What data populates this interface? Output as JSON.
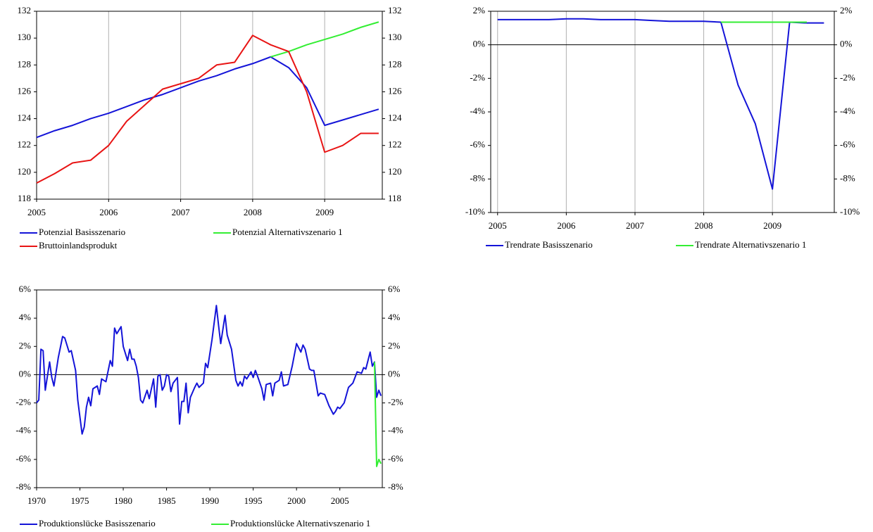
{
  "chart_data": [
    {
      "type": "line",
      "x": [
        2005,
        2005.25,
        2005.5,
        2005.75,
        2006,
        2006.25,
        2006.5,
        2006.75,
        2007,
        2007.25,
        2007.5,
        2007.75,
        2008,
        2008.25,
        2008.5,
        2008.75,
        2009,
        2009.25,
        2009.5,
        2009.75
      ],
      "xlim": [
        2005,
        2009.8
      ],
      "xticks": [
        2005,
        2006,
        2007,
        2008,
        2009
      ],
      "ylim": [
        118,
        132
      ],
      "yticks": [
        118,
        120,
        122,
        124,
        126,
        128,
        130,
        132
      ],
      "y2lim": [
        118,
        132
      ],
      "y2ticks": [
        118,
        120,
        122,
        124,
        126,
        128,
        130,
        132
      ],
      "xgrid": true,
      "zero_line": false,
      "series": [
        {
          "name": "Potenzial Basisszenario",
          "color": "#1414d8",
          "values": [
            122.6,
            123.1,
            123.5,
            124.0,
            124.4,
            124.9,
            125.4,
            125.8,
            126.3,
            126.8,
            127.2,
            127.7,
            128.1,
            128.6,
            127.8,
            126.3,
            123.5,
            123.9,
            124.3,
            124.7
          ]
        },
        {
          "name": "Potenzial Alternativszenario 1",
          "color": "#33ee33",
          "values": [
            null,
            null,
            null,
            null,
            null,
            null,
            null,
            null,
            null,
            null,
            null,
            null,
            null,
            128.6,
            129.0,
            129.5,
            129.9,
            130.3,
            130.8,
            131.2
          ]
        },
        {
          "name": "Bruttoinlandsprodukt",
          "color": "#e81414",
          "values": [
            119.2,
            119.9,
            120.7,
            120.9,
            122.0,
            123.8,
            125.0,
            126.2,
            126.6,
            127.0,
            128.0,
            128.2,
            130.2,
            129.5,
            129.0,
            126.0,
            121.5,
            122.0,
            122.9,
            122.9
          ]
        }
      ]
    },
    {
      "type": "line",
      "x": [
        2005,
        2005.25,
        2005.5,
        2005.75,
        2006,
        2006.25,
        2006.5,
        2006.75,
        2007,
        2007.25,
        2007.5,
        2007.75,
        2008,
        2008.25,
        2008.5,
        2008.75,
        2009,
        2009.25,
        2009.5,
        2009.75
      ],
      "xlim": [
        2004.9,
        2009.9
      ],
      "xticks": [
        2005,
        2006,
        2007,
        2008,
        2009
      ],
      "ylim": [
        -10,
        2
      ],
      "yticks": [
        {
          "value": -10,
          "label": "-10%"
        },
        {
          "value": -8,
          "label": "-8%"
        },
        {
          "value": -6,
          "label": "-6%"
        },
        {
          "value": -4,
          "label": "-4%"
        },
        {
          "value": -2,
          "label": "-2%"
        },
        {
          "value": 0,
          "label": "0%"
        },
        {
          "value": 2,
          "label": "2%"
        }
      ],
      "y2lim": [
        -10,
        2
      ],
      "y2ticks": [
        {
          "value": -10,
          "label": "-10%"
        },
        {
          "value": -8,
          "label": "-8%"
        },
        {
          "value": -6,
          "label": "-6%"
        },
        {
          "value": -4,
          "label": "-4%"
        },
        {
          "value": -2,
          "label": "-2%"
        },
        {
          "value": 0,
          "label": "0%"
        },
        {
          "value": 2,
          "label": "2%"
        }
      ],
      "xgrid": true,
      "zero_line": true,
      "series": [
        {
          "name": "Trendrate Basisszenario",
          "color": "#1414d8",
          "values": [
            1.5,
            1.5,
            1.5,
            1.5,
            1.55,
            1.55,
            1.5,
            1.5,
            1.5,
            1.45,
            1.4,
            1.4,
            1.4,
            1.35,
            -2.4,
            -4.7,
            -8.6,
            1.35,
            1.3,
            1.3
          ]
        },
        {
          "name": "Trendrate Alternativszenario 1",
          "color": "#33ee33",
          "values": [
            null,
            null,
            null,
            null,
            null,
            null,
            null,
            null,
            null,
            null,
            null,
            null,
            null,
            1.35,
            1.35,
            1.35,
            1.35,
            1.35,
            1.35,
            null
          ]
        }
      ]
    },
    {
      "type": "line",
      "xlim": [
        1970,
        2009.9
      ],
      "xticks": [
        1970,
        1975,
        1980,
        1985,
        1990,
        1995,
        2000,
        2005
      ],
      "ylim": [
        -8,
        6
      ],
      "yticks": [
        {
          "value": -8,
          "label": "-8%"
        },
        {
          "value": -6,
          "label": "-6%"
        },
        {
          "value": -4,
          "label": "-4%"
        },
        {
          "value": -2,
          "label": "-2%"
        },
        {
          "value": 0,
          "label": "0%"
        },
        {
          "value": 2,
          "label": "2%"
        },
        {
          "value": 4,
          "label": "4%"
        },
        {
          "value": 6,
          "label": "6%"
        }
      ],
      "y2lim": [
        -8,
        6
      ],
      "y2ticks": [
        {
          "value": -8,
          "label": "-8%"
        },
        {
          "value": -6,
          "label": "-6%"
        },
        {
          "value": -4,
          "label": "-4%"
        },
        {
          "value": -2,
          "label": "-2%"
        },
        {
          "value": 0,
          "label": "0%"
        },
        {
          "value": 2,
          "label": "2%"
        },
        {
          "value": 4,
          "label": "4%"
        },
        {
          "value": 6,
          "label": "6%"
        }
      ],
      "xgrid": false,
      "zero_line": true,
      "series": [
        {
          "name": "Produktionslücke Basisszenario",
          "color": "#1414d8",
          "x": [
            1970,
            1970.25,
            1970.5,
            1970.75,
            1971,
            1971.5,
            1971.75,
            1972,
            1972.5,
            1973,
            1973.25,
            1973.75,
            1974,
            1974.5,
            1974.75,
            1975.25,
            1975.5,
            1975.75,
            1976,
            1976.25,
            1976.5,
            1977,
            1977.25,
            1977.5,
            1978,
            1978.5,
            1978.75,
            1979,
            1979.25,
            1979.75,
            1980,
            1980.5,
            1980.75,
            1981,
            1981.25,
            1981.5,
            1981.75,
            1982,
            1982.25,
            1982.75,
            1983,
            1983.5,
            1983.75,
            1984,
            1984.25,
            1984.5,
            1984.75,
            1985,
            1985.25,
            1985.5,
            1985.75,
            1986.25,
            1986.5,
            1986.75,
            1987,
            1987.25,
            1987.5,
            1987.75,
            1988.25,
            1988.5,
            1988.75,
            1989.25,
            1989.5,
            1989.75,
            1990.25,
            1990.75,
            1991,
            1991.25,
            1991.75,
            1992,
            1992.5,
            1993,
            1993.25,
            1993.5,
            1993.75,
            1994,
            1994.25,
            1994.75,
            1995,
            1995.25,
            1995.5,
            1996,
            1996.25,
            1996.5,
            1997,
            1997.25,
            1997.5,
            1998,
            1998.25,
            1998.5,
            1999,
            1999.5,
            2000,
            2000.25,
            2000.5,
            2000.75,
            2001,
            2001.5,
            2001.75,
            2002,
            2002.5,
            2002.75,
            2003.25,
            2003.75,
            2004.25,
            2004.5,
            2004.75,
            2005,
            2005.5,
            2006,
            2006.5,
            2007,
            2007.5,
            2007.75,
            2008,
            2008.5,
            2008.75,
            2009,
            2009.25,
            2009.5,
            2009.75
          ],
          "values": [
            -2.0,
            -1.8,
            1.8,
            1.7,
            -1.1,
            0.9,
            -0.2,
            -0.8,
            1.2,
            2.7,
            2.6,
            1.6,
            1.7,
            0.3,
            -1.8,
            -4.2,
            -3.7,
            -2.3,
            -1.6,
            -2.2,
            -1.0,
            -0.8,
            -1.4,
            -0.3,
            -0.5,
            1.0,
            0.6,
            3.3,
            2.9,
            3.4,
            2.0,
            1.0,
            1.8,
            1.1,
            1.1,
            0.6,
            -0.2,
            -1.8,
            -2.0,
            -1.1,
            -1.7,
            -0.3,
            -2.3,
            -0.1,
            0.0,
            -1.1,
            -0.8,
            0.0,
            -0.1,
            -1.2,
            -0.6,
            -0.2,
            -3.5,
            -1.9,
            -1.9,
            -0.6,
            -2.7,
            -1.6,
            -0.9,
            -0.6,
            -0.9,
            -0.6,
            0.8,
            0.5,
            2.5,
            4.9,
            3.5,
            2.2,
            4.2,
            2.8,
            1.8,
            -0.4,
            -0.8,
            -0.5,
            -0.8,
            -0.1,
            -0.3,
            0.2,
            -0.2,
            0.3,
            -0.1,
            -1.0,
            -1.8,
            -0.7,
            -0.6,
            -1.5,
            -0.6,
            -0.4,
            0.2,
            -0.8,
            -0.7,
            0.6,
            2.2,
            1.9,
            1.6,
            2.1,
            1.8,
            0.4,
            0.3,
            0.3,
            -1.5,
            -1.3,
            -1.4,
            -2.2,
            -2.8,
            -2.6,
            -2.3,
            -2.4,
            -2.0,
            -0.9,
            -0.6,
            0.2,
            0.1,
            0.5,
            0.4,
            1.6,
            0.6,
            0.9,
            -1.6,
            -1.1,
            -1.5
          ]
        },
        {
          "name": "Produktionslücke Alternativszenario 1",
          "color": "#33ee33",
          "x": [
            2009,
            2009.25,
            2009.5,
            2009.75
          ],
          "values": [
            0.9,
            -6.5,
            -6.0,
            -6.3
          ]
        }
      ]
    }
  ]
}
